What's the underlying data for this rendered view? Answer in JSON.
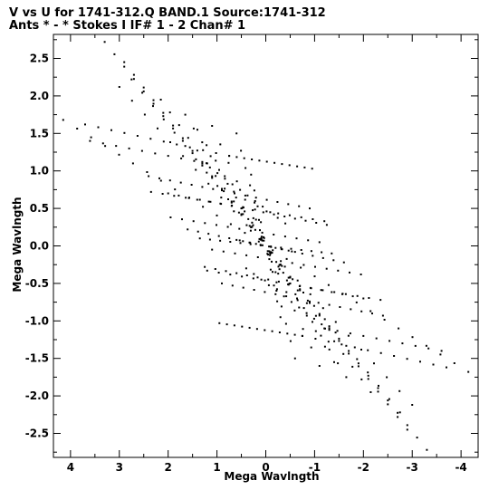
{
  "header": {
    "line1": "V vs U for 1741-312.Q BAND.1   Source:1741-312",
    "line2": "Ants * - *     Stokes I  IF# 1 - 2  Chan# 1"
  },
  "chart_data": {
    "type": "scatter",
    "title": "V vs U for 1741-312.Q BAND.1   Source:1741-312",
    "subtitle": "Ants * - *     Stokes I  IF# 1 - 2  Chan# 1",
    "xlabel": "Mega Wavlngth",
    "ylabel": "Mega Wavlngth",
    "xlim": [
      4.35,
      -4.35
    ],
    "ylim": [
      -2.82,
      2.82
    ],
    "x_ticks": [
      4,
      3,
      2,
      1,
      0,
      -1,
      -2,
      -3,
      -4
    ],
    "x_tick_labels": [
      "4",
      "3",
      "2",
      "1",
      "0",
      "-1",
      "-2",
      "-3",
      "-4"
    ],
    "y_ticks": [
      2.5,
      2.0,
      1.5,
      1.0,
      0.5,
      0.0,
      -0.5,
      -1.0,
      -1.5,
      -2.0,
      -2.5
    ],
    "y_tick_labels": [
      "2.5",
      "2.0",
      "1.5",
      "1.0",
      "0.5",
      "0.0",
      "-0.5",
      "-1.0",
      "-1.5",
      "-2.0",
      "-2.5"
    ],
    "grid": false,
    "marker_color": "#000000",
    "tracks": [
      {
        "from": [
          3.3,
          2.72
        ],
        "to": [
          -3.3,
          -2.72
        ],
        "n": 34
      },
      {
        "from": [
          2.9,
          2.45
        ],
        "to": [
          -2.9,
          -2.45
        ],
        "n": 30
      },
      {
        "from": [
          2.75,
          2.22
        ],
        "to": [
          -2.75,
          -2.22
        ],
        "n": 26
      },
      {
        "from": [
          2.15,
          1.95
        ],
        "to": [
          -2.15,
          -1.95
        ],
        "n": 24
      },
      {
        "from": [
          1.65,
          1.75
        ],
        "to": [
          -1.65,
          -1.75
        ],
        "n": 20
      },
      {
        "from": [
          3.0,
          2.12
        ],
        "to": [
          -3.0,
          -2.12
        ],
        "n": 24
      },
      {
        "from": [
          4.15,
          1.68
        ],
        "to": [
          -4.15,
          -1.68
        ],
        "n": 30
      },
      {
        "from": [
          3.7,
          1.62
        ],
        "to": [
          0.75,
          1.2
        ],
        "n": 12
      },
      {
        "from": [
          -0.75,
          -1.2
        ],
        "to": [
          -3.7,
          -1.62
        ],
        "n": 12
      },
      {
        "from": [
          3.6,
          1.4
        ],
        "to": [
          1.2,
          1.1
        ],
        "n": 10
      },
      {
        "from": [
          -1.2,
          -1.1
        ],
        "to": [
          -3.6,
          -1.4
        ],
        "n": 10
      },
      {
        "from": [
          1.4,
          1.55
        ],
        "to": [
          -1.4,
          -1.55
        ],
        "n": 16
      },
      {
        "from": [
          1.1,
          1.6
        ],
        "to": [
          -1.1,
          -1.6
        ],
        "n": 14
      },
      {
        "from": [
          0.6,
          1.5
        ],
        "to": [
          -0.6,
          -1.5
        ],
        "n": 14
      },
      {
        "from": [
          0.75,
          1.2
        ],
        "to": [
          -0.95,
          1.03
        ],
        "n": 12
      },
      {
        "from": [
          0.95,
          -1.03
        ],
        "to": [
          -0.75,
          -1.2
        ],
        "n": 12
      },
      {
        "from": [
          2.4,
          0.93
        ],
        "to": [
          -0.9,
          0.5
        ],
        "n": 16
      },
      {
        "from": [
          0.9,
          -0.5
        ],
        "to": [
          -2.4,
          -0.93
        ],
        "n": 16
      },
      {
        "from": [
          2.35,
          0.72
        ],
        "to": [
          -1.2,
          0.33
        ],
        "n": 16
      },
      {
        "from": [
          1.2,
          -0.33
        ],
        "to": [
          -2.35,
          -0.72
        ],
        "n": 16
      },
      {
        "from": [
          2.0,
          0.7
        ],
        "to": [
          -1.25,
          0.28
        ],
        "n": 16
      },
      {
        "from": [
          1.25,
          -0.28
        ],
        "to": [
          -2.0,
          -0.7
        ],
        "n": 16
      },
      {
        "from": [
          1.95,
          0.38
        ],
        "to": [
          -1.1,
          0.05
        ],
        "n": 14
      },
      {
        "from": [
          1.1,
          -0.05
        ],
        "to": [
          -1.95,
          -0.38
        ],
        "n": 14
      },
      {
        "from": [
          1.3,
          1.12
        ],
        "to": [
          -0.4,
          0.3
        ],
        "n": 12
      },
      {
        "from": [
          0.4,
          -0.3
        ],
        "to": [
          -1.3,
          -1.12
        ],
        "n": 12
      },
      {
        "from": [
          1.6,
          0.22
        ],
        "to": [
          -1.6,
          -0.22
        ],
        "n": 16
      },
      {
        "from": [
          1.35,
          0.1
        ],
        "to": [
          -1.35,
          -0.1
        ],
        "n": 14
      },
      {
        "from": [
          0.6,
          0.08
        ],
        "to": [
          -0.6,
          -0.08
        ],
        "n": 10
      },
      {
        "from": [
          0.5,
          0.5
        ],
        "to": [
          -0.5,
          -0.5
        ],
        "n": 8
      },
      {
        "from": [
          0.3,
          0.95
        ],
        "to": [
          -0.3,
          -0.95
        ],
        "n": 10
      },
      {
        "from": [
          0.2,
          0.35
        ],
        "to": [
          -0.2,
          -0.35
        ],
        "n": 6
      }
    ]
  }
}
